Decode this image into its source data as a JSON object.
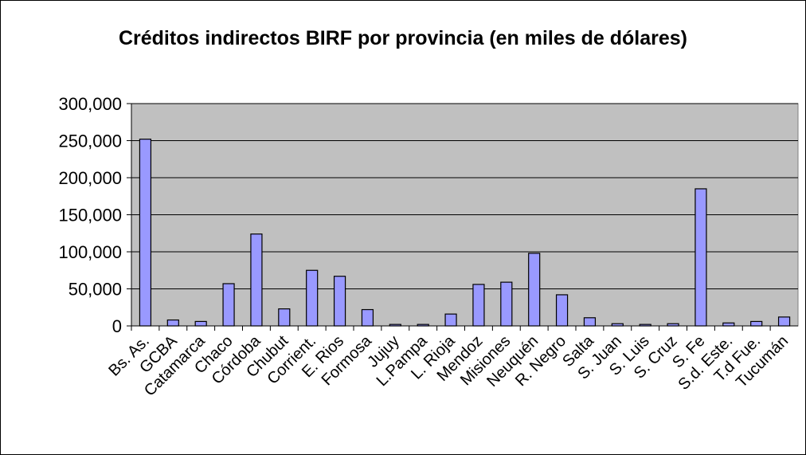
{
  "chart_data": {
    "type": "bar",
    "title": "Créditos indirectos BIRF por provincia (en miles de dólares)",
    "categories": [
      "Bs. As.",
      "GCBA",
      "Catamarca",
      "Chaco",
      "Córdoba",
      "Chubut",
      "Corrient.",
      "E. Rios",
      "Formosa",
      "Jujuy",
      "L.Pampa",
      "L. Rioja",
      "Mendoz",
      "Misiones",
      "Neuquén",
      "R. Negro",
      "Salta",
      "S. Juan",
      "S. Luis",
      "S. Cruz",
      "S. Fe",
      "S.d. Este.",
      "T.d Fue.",
      "Tucumán"
    ],
    "values": [
      252000,
      8000,
      6000,
      57000,
      124000,
      23000,
      75000,
      67000,
      22000,
      2000,
      2000,
      16000,
      56000,
      59000,
      98000,
      42000,
      11000,
      3000,
      2000,
      3000,
      185000,
      4000,
      6000,
      12000
    ],
    "color": "#9999ff",
    "ylim": [
      0,
      300000
    ],
    "yticks": [
      0,
      {
        "value": 50000,
        "label": "50,000"
      },
      {
        "value": 100000,
        "label": "100,000"
      },
      {
        "value": 150000,
        "label": "150,000"
      },
      {
        "value": 200000,
        "label": "200,000"
      },
      {
        "value": 250000,
        "label": "250,000"
      },
      {
        "value": 300000,
        "label": "300,000"
      }
    ],
    "grid": true
  }
}
